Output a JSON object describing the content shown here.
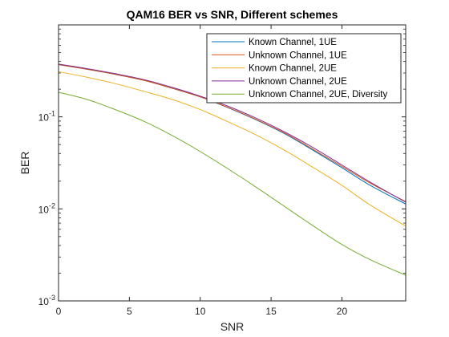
{
  "chart_data": {
    "type": "line",
    "title": "QAM16 BER vs SNR, Different schemes",
    "xlabel": "SNR",
    "ylabel": "BER",
    "xlim": [
      0,
      24.5
    ],
    "ylim": [
      0.001,
      1
    ],
    "yscale": "log",
    "grid": false,
    "legend_position": "top-right",
    "x_ticks": [
      0,
      5,
      10,
      15,
      20
    ],
    "x_tick_labels": [
      "0",
      "5",
      "10",
      "15",
      "20"
    ],
    "y_ticks": [
      0.001,
      0.01,
      0.1
    ],
    "y_tick_labels": [
      {
        "base": "10",
        "exp": "-3"
      },
      {
        "base": "10",
        "exp": "-2"
      },
      {
        "base": "10",
        "exp": "-1"
      }
    ],
    "x": [
      0,
      2,
      4,
      6,
      8,
      10,
      12,
      14,
      16,
      18,
      20,
      22,
      24.5
    ],
    "series": [
      {
        "name": "Known Channel, 1UE",
        "color": "#0072BD",
        "values": [
          0.37,
          0.33,
          0.29,
          0.25,
          0.205,
          0.165,
          0.125,
          0.092,
          0.065,
          0.043,
          0.028,
          0.018,
          0.0113
        ]
      },
      {
        "name": "Unknown Channel, 1UE",
        "color": "#D95319",
        "values": [
          0.37,
          0.33,
          0.29,
          0.25,
          0.205,
          0.165,
          0.126,
          0.093,
          0.066,
          0.044,
          0.029,
          0.019,
          0.012
        ]
      },
      {
        "name": "Known Channel, 2UE",
        "color": "#EDB120",
        "values": [
          0.31,
          0.27,
          0.23,
          0.19,
          0.155,
          0.12,
          0.088,
          0.063,
          0.043,
          0.028,
          0.018,
          0.011,
          0.0065
        ]
      },
      {
        "name": "Unknown Channel, 2UE",
        "color": "#7E2F8E",
        "values": [
          0.375,
          0.335,
          0.295,
          0.255,
          0.21,
          0.168,
          0.13,
          0.096,
          0.068,
          0.046,
          0.03,
          0.0195,
          0.0118
        ]
      },
      {
        "name": "Unknown Channel, 2UE, Diversity",
        "color": "#77AC30",
        "values": [
          0.185,
          0.155,
          0.12,
          0.09,
          0.063,
          0.042,
          0.027,
          0.017,
          0.0105,
          0.0065,
          0.0041,
          0.0028,
          0.0019
        ]
      }
    ]
  }
}
